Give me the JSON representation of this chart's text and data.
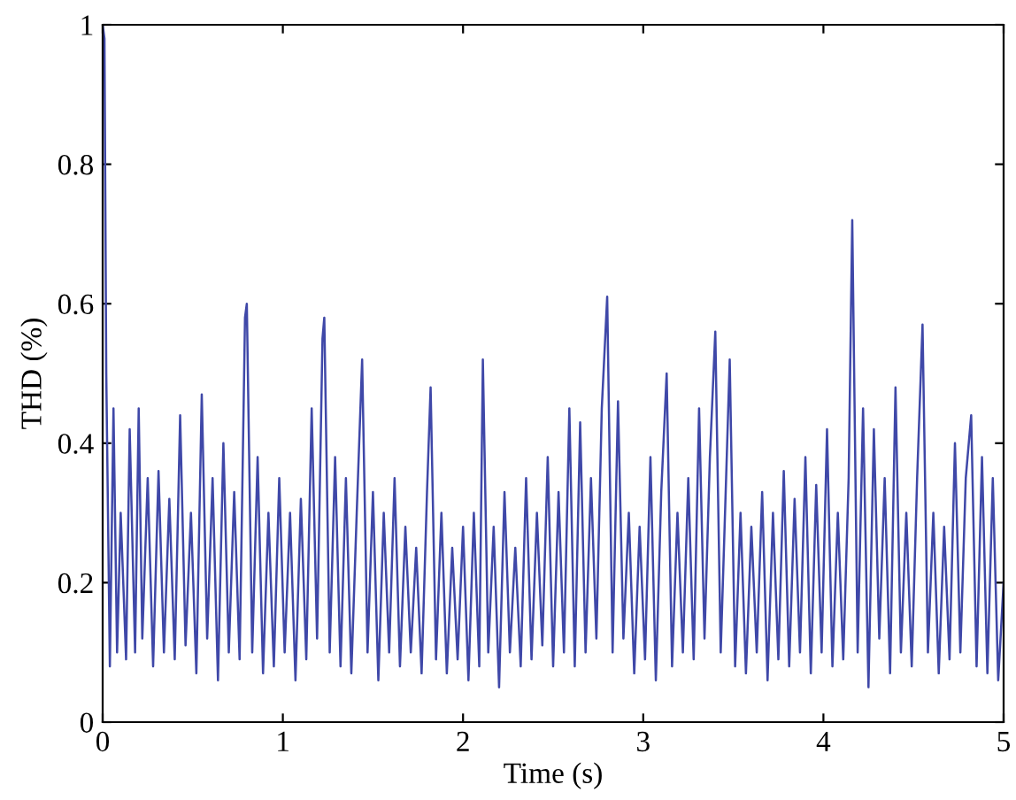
{
  "chart_data": {
    "type": "line",
    "xlabel": "Time (s)",
    "ylabel": "THD (%)",
    "xlim": [
      0,
      5
    ],
    "ylim": [
      0,
      1
    ],
    "xticks": [
      0,
      1,
      2,
      3,
      4,
      5
    ],
    "yticks": [
      0,
      0.2,
      0.4,
      0.6,
      0.8,
      1
    ],
    "grid": false,
    "series": [
      {
        "color": "#3f48a8",
        "x": [
          0,
          0.01,
          0.02,
          0.04,
          0.06,
          0.08,
          0.1,
          0.13,
          0.15,
          0.18,
          0.2,
          0.22,
          0.25,
          0.28,
          0.31,
          0.34,
          0.37,
          0.4,
          0.43,
          0.46,
          0.49,
          0.52,
          0.55,
          0.58,
          0.61,
          0.64,
          0.67,
          0.7,
          0.73,
          0.76,
          0.79,
          0.8,
          0.83,
          0.86,
          0.89,
          0.92,
          0.95,
          0.98,
          1.01,
          1.04,
          1.07,
          1.1,
          1.13,
          1.16,
          1.19,
          1.22,
          1.23,
          1.26,
          1.29,
          1.32,
          1.35,
          1.38,
          1.41,
          1.44,
          1.47,
          1.5,
          1.53,
          1.56,
          1.59,
          1.62,
          1.65,
          1.68,
          1.71,
          1.74,
          1.77,
          1.8,
          1.82,
          1.85,
          1.88,
          1.91,
          1.94,
          1.97,
          2.0,
          2.03,
          2.06,
          2.09,
          2.11,
          2.14,
          2.17,
          2.2,
          2.23,
          2.26,
          2.29,
          2.32,
          2.35,
          2.38,
          2.41,
          2.44,
          2.47,
          2.5,
          2.53,
          2.56,
          2.59,
          2.62,
          2.65,
          2.68,
          2.71,
          2.74,
          2.77,
          2.8,
          2.83,
          2.86,
          2.89,
          2.92,
          2.95,
          2.98,
          3.01,
          3.04,
          3.07,
          3.1,
          3.13,
          3.16,
          3.19,
          3.22,
          3.25,
          3.28,
          3.31,
          3.34,
          3.37,
          3.4,
          3.43,
          3.46,
          3.48,
          3.51,
          3.54,
          3.57,
          3.6,
          3.63,
          3.66,
          3.69,
          3.72,
          3.75,
          3.78,
          3.81,
          3.84,
          3.87,
          3.9,
          3.93,
          3.96,
          3.99,
          4.02,
          4.05,
          4.08,
          4.11,
          4.14,
          4.16,
          4.19,
          4.22,
          4.25,
          4.28,
          4.31,
          4.34,
          4.37,
          4.4,
          4.43,
          4.46,
          4.49,
          4.52,
          4.55,
          4.58,
          4.61,
          4.64,
          4.67,
          4.7,
          4.73,
          4.76,
          4.79,
          4.82,
          4.85,
          4.88,
          4.91,
          4.94,
          4.97,
          5.0
        ],
        "values": [
          1.0,
          0.98,
          0.5,
          0.08,
          0.45,
          0.1,
          0.3,
          0.09,
          0.42,
          0.1,
          0.45,
          0.12,
          0.35,
          0.08,
          0.36,
          0.1,
          0.32,
          0.09,
          0.44,
          0.11,
          0.3,
          0.07,
          0.47,
          0.12,
          0.35,
          0.06,
          0.4,
          0.1,
          0.33,
          0.09,
          0.58,
          0.6,
          0.1,
          0.38,
          0.07,
          0.3,
          0.08,
          0.35,
          0.1,
          0.3,
          0.06,
          0.32,
          0.09,
          0.45,
          0.12,
          0.55,
          0.58,
          0.1,
          0.38,
          0.08,
          0.35,
          0.07,
          0.3,
          0.52,
          0.1,
          0.33,
          0.06,
          0.3,
          0.1,
          0.35,
          0.08,
          0.28,
          0.1,
          0.25,
          0.07,
          0.33,
          0.48,
          0.09,
          0.3,
          0.07,
          0.25,
          0.09,
          0.28,
          0.06,
          0.3,
          0.08,
          0.52,
          0.1,
          0.28,
          0.05,
          0.33,
          0.1,
          0.25,
          0.08,
          0.35,
          0.09,
          0.3,
          0.11,
          0.38,
          0.08,
          0.33,
          0.1,
          0.45,
          0.08,
          0.43,
          0.1,
          0.35,
          0.12,
          0.45,
          0.61,
          0.1,
          0.46,
          0.12,
          0.3,
          0.07,
          0.28,
          0.09,
          0.38,
          0.06,
          0.33,
          0.5,
          0.08,
          0.3,
          0.1,
          0.35,
          0.09,
          0.45,
          0.12,
          0.38,
          0.56,
          0.1,
          0.35,
          0.52,
          0.08,
          0.3,
          0.07,
          0.28,
          0.1,
          0.33,
          0.06,
          0.3,
          0.09,
          0.36,
          0.08,
          0.32,
          0.1,
          0.38,
          0.07,
          0.34,
          0.1,
          0.42,
          0.08,
          0.3,
          0.09,
          0.35,
          0.72,
          0.1,
          0.45,
          0.05,
          0.42,
          0.12,
          0.35,
          0.07,
          0.48,
          0.1,
          0.3,
          0.08,
          0.35,
          0.57,
          0.1,
          0.3,
          0.07,
          0.28,
          0.09,
          0.4,
          0.1,
          0.35,
          0.44,
          0.08,
          0.38,
          0.07,
          0.35,
          0.06,
          0.2
        ]
      }
    ]
  }
}
